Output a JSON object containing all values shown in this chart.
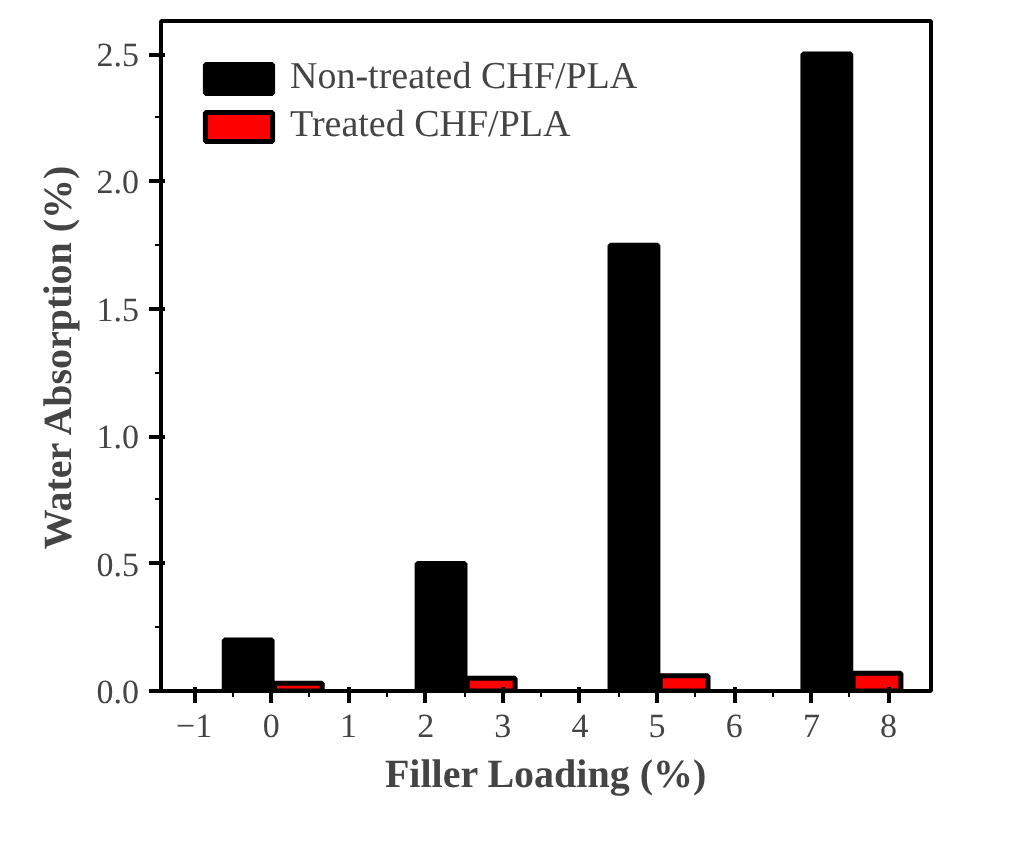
{
  "chart_data": {
    "type": "bar",
    "xlabel": "Filler Loading (%)",
    "ylabel": "Water Absorption (%)",
    "xlim": [
      -1.43,
      8.55
    ],
    "ylim": [
      0,
      2.63
    ],
    "xticks": [
      -1,
      0,
      1,
      2,
      3,
      4,
      5,
      6,
      7,
      8
    ],
    "yticks": [
      {
        "value": 0,
        "label": "0.0"
      },
      {
        "value": 0.5,
        "label": "0.5"
      },
      {
        "value": 1,
        "label": "1.0"
      },
      {
        "value": 1.5,
        "label": "1.5"
      },
      {
        "value": 2,
        "label": "2.0"
      },
      {
        "value": 2.5,
        "label": "2.5"
      }
    ],
    "grid": false,
    "legend": "top left",
    "series": [
      {
        "name": "Non-treated CHF/PLA",
        "color": "#000000",
        "x": [
          -0.3,
          2.2,
          4.7,
          7.2
        ],
        "values": [
          0.2,
          0.5,
          1.75,
          2.5
        ]
      },
      {
        "name": "Treated CHF/PLA",
        "color": "#ff0000",
        "x": [
          0.35,
          2.85,
          5.35,
          7.85
        ],
        "values": [
          0.03,
          0.05,
          0.06,
          0.07
        ]
      }
    ]
  }
}
